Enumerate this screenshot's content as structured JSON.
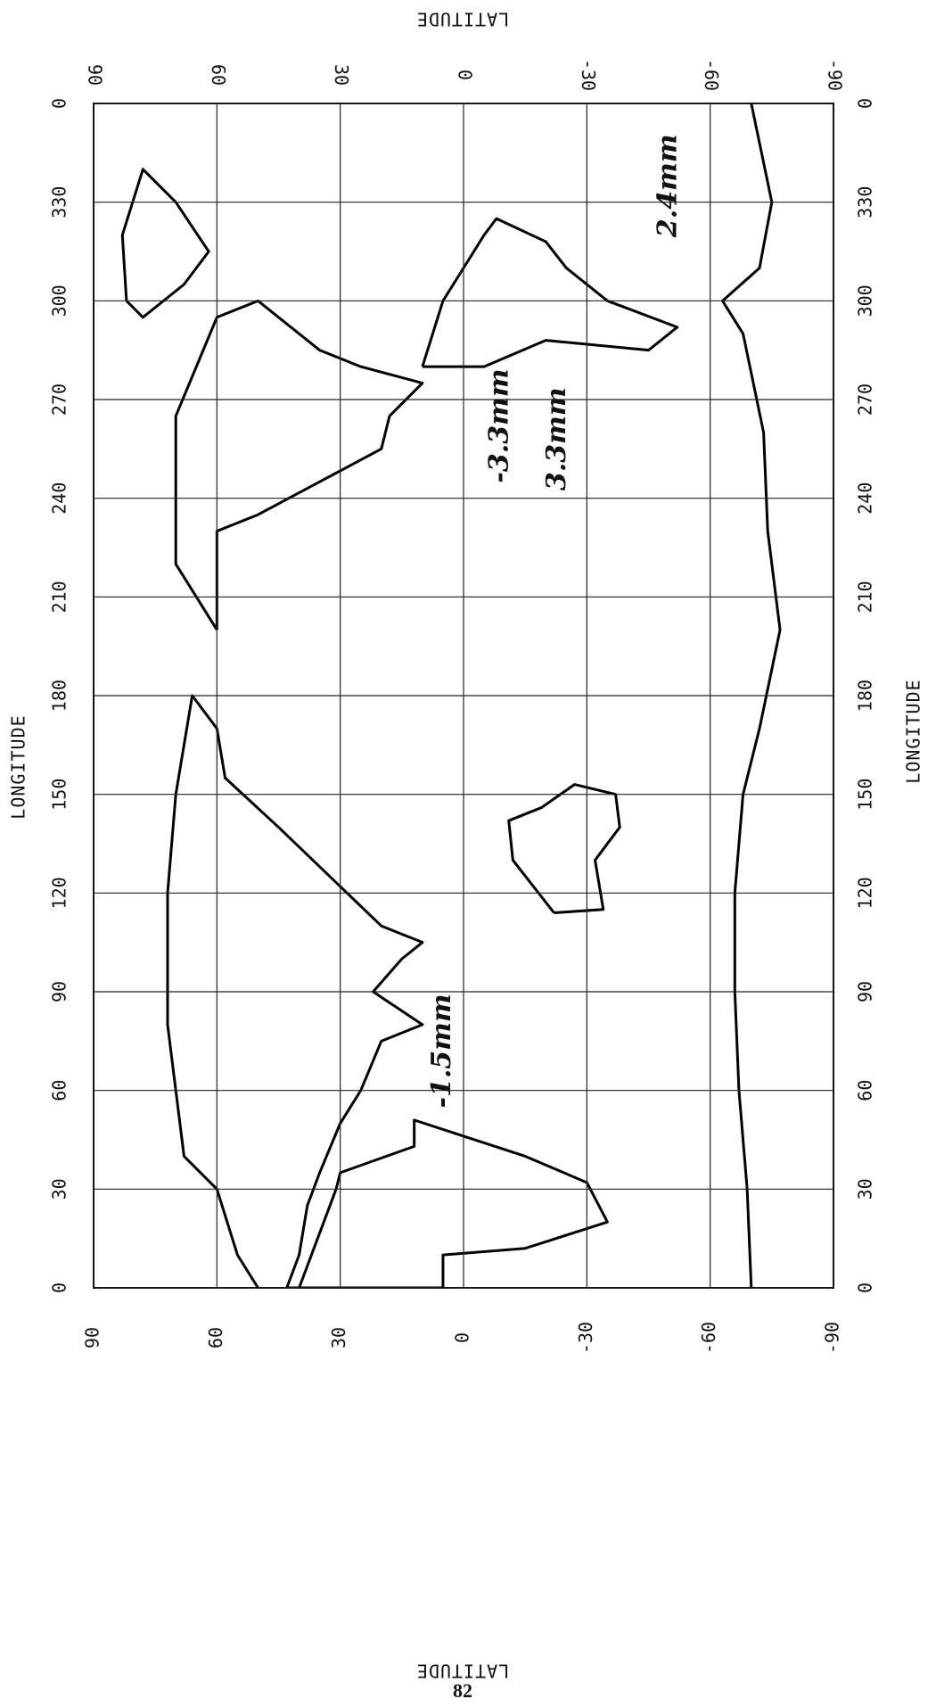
{
  "axis_titles": {
    "top": "LATITUDE",
    "bottom": "LATITUDE",
    "left": "LONGITUDE",
    "right": "LONGITUDE"
  },
  "latitude_ticks": [
    90,
    60,
    30,
    0,
    -30,
    -60,
    -90
  ],
  "longitude_ticks": [
    0,
    30,
    60,
    90,
    120,
    150,
    180,
    210,
    240,
    270,
    300,
    330,
    {
      "value": 360,
      "label": "0"
    }
  ],
  "annotations": [
    {
      "text": "2.4mm",
      "lon": 335,
      "lat": -50
    },
    {
      "text": "-3.3mm",
      "lon": 262,
      "lat": -9
    },
    {
      "text": "3.3mm",
      "lon": 258,
      "lat": -23
    },
    {
      "text": "-1.5mm",
      "lon": 72,
      "lat": 5
    }
  ],
  "page_number": "82"
}
